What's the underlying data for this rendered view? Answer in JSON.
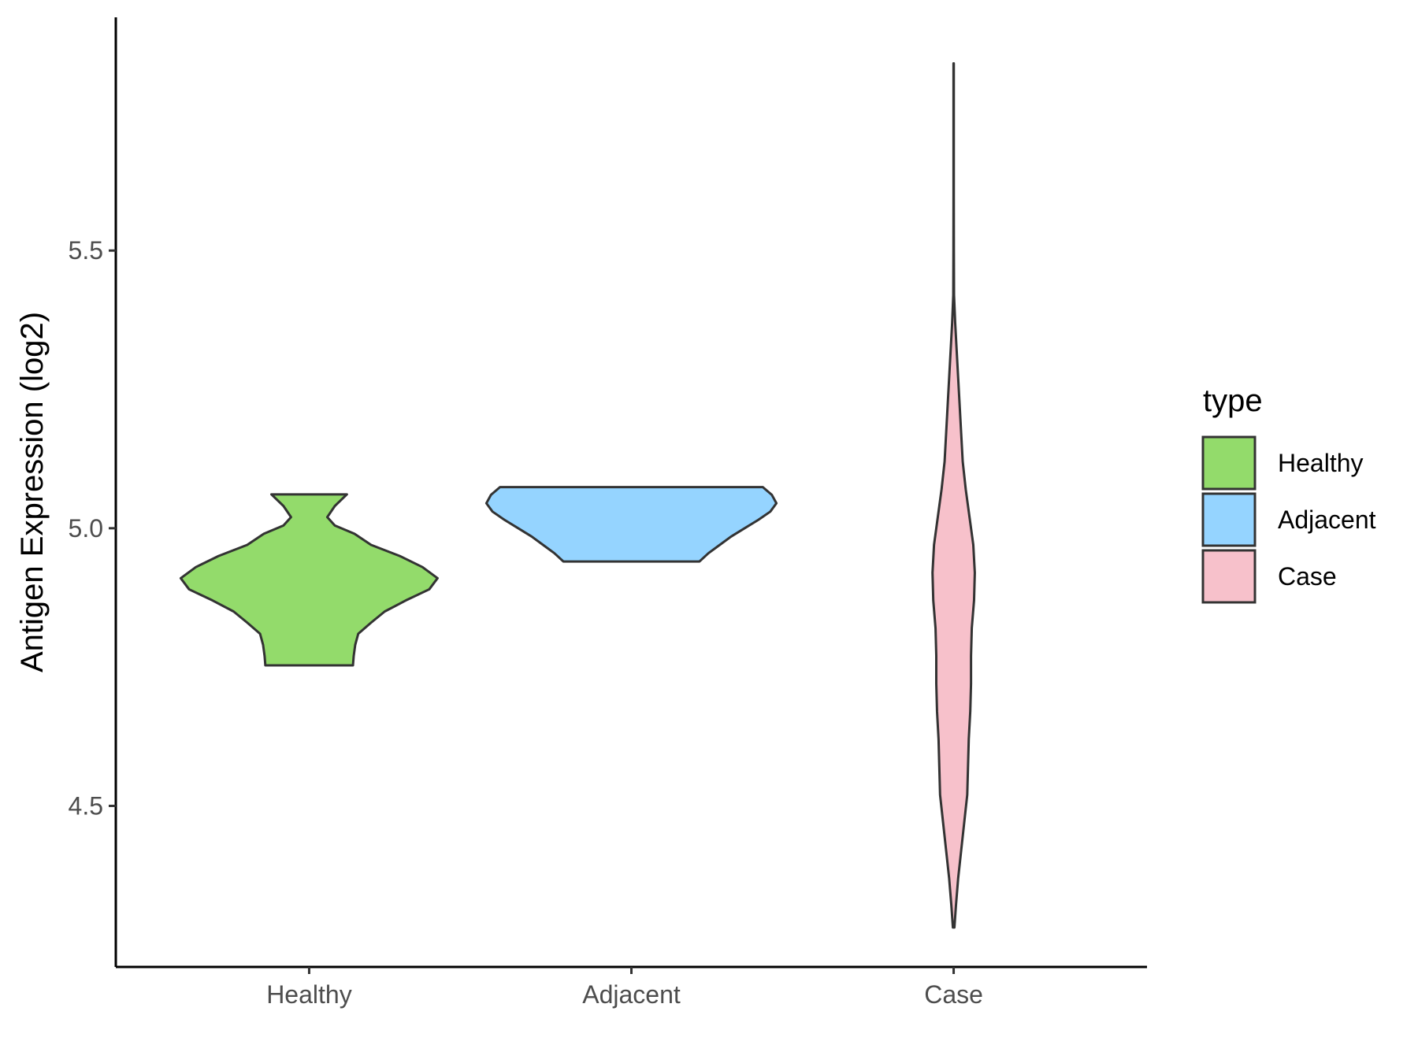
{
  "chart_data": {
    "type": "violin",
    "ylabel": "Antigen Expression (log2)",
    "xlabel": "",
    "categories": [
      "Healthy",
      "Adjacent",
      "Case"
    ],
    "yticks": [
      4.5,
      5.0,
      5.5
    ],
    "ytick_labels": [
      "4.5",
      "5.0",
      "5.5"
    ],
    "ylim": [
      4.21,
      5.92
    ],
    "legend": {
      "title": "type",
      "position": "right",
      "entries": [
        "Healthy",
        "Adjacent",
        "Case"
      ]
    },
    "colors": {
      "Healthy": "#93db6b",
      "Adjacent": "#95d4ff",
      "Case": "#f7c1cb",
      "outline": "#333333"
    },
    "series": [
      {
        "category": "Healthy",
        "min": 4.753,
        "max": 5.061,
        "density": [
          [
            4.753,
            0.58
          ],
          [
            4.77,
            0.59
          ],
          [
            4.79,
            0.61
          ],
          [
            4.81,
            0.65
          ],
          [
            4.83,
            0.82
          ],
          [
            4.85,
            1.0
          ],
          [
            4.87,
            1.28
          ],
          [
            4.89,
            1.59
          ],
          [
            4.91,
            1.7
          ],
          [
            4.93,
            1.5
          ],
          [
            4.95,
            1.2
          ],
          [
            4.97,
            0.82
          ],
          [
            4.99,
            0.6
          ],
          [
            5.005,
            0.34
          ],
          [
            5.02,
            0.24
          ],
          [
            5.04,
            0.34
          ],
          [
            5.061,
            0.5
          ]
        ]
      },
      {
        "category": "Adjacent",
        "min": 4.94,
        "max": 5.074,
        "density": [
          [
            4.94,
            0.9
          ],
          [
            4.955,
            1.02
          ],
          [
            4.97,
            1.17
          ],
          [
            4.985,
            1.32
          ],
          [
            5.0,
            1.5
          ],
          [
            5.015,
            1.68
          ],
          [
            5.03,
            1.84
          ],
          [
            5.045,
            1.92
          ],
          [
            5.06,
            1.86
          ],
          [
            5.074,
            1.74
          ]
        ]
      },
      {
        "category": "Case",
        "min": 4.281,
        "max": 5.837,
        "density": [
          [
            4.281,
            0.01
          ],
          [
            4.32,
            0.03
          ],
          [
            4.37,
            0.06
          ],
          [
            4.42,
            0.1
          ],
          [
            4.47,
            0.14
          ],
          [
            4.52,
            0.18
          ],
          [
            4.57,
            0.19
          ],
          [
            4.62,
            0.2
          ],
          [
            4.67,
            0.22
          ],
          [
            4.72,
            0.23
          ],
          [
            4.77,
            0.23
          ],
          [
            4.82,
            0.24
          ],
          [
            4.87,
            0.27
          ],
          [
            4.92,
            0.28
          ],
          [
            4.97,
            0.26
          ],
          [
            5.02,
            0.21
          ],
          [
            5.07,
            0.16
          ],
          [
            5.12,
            0.12
          ],
          [
            5.17,
            0.1
          ],
          [
            5.22,
            0.08
          ],
          [
            5.27,
            0.06
          ],
          [
            5.32,
            0.04
          ],
          [
            5.37,
            0.02
          ],
          [
            5.42,
            0.005
          ],
          [
            5.5,
            0.003
          ],
          [
            5.6,
            0.002
          ],
          [
            5.7,
            0.002
          ],
          [
            5.837,
            0.002
          ]
        ]
      }
    ]
  }
}
